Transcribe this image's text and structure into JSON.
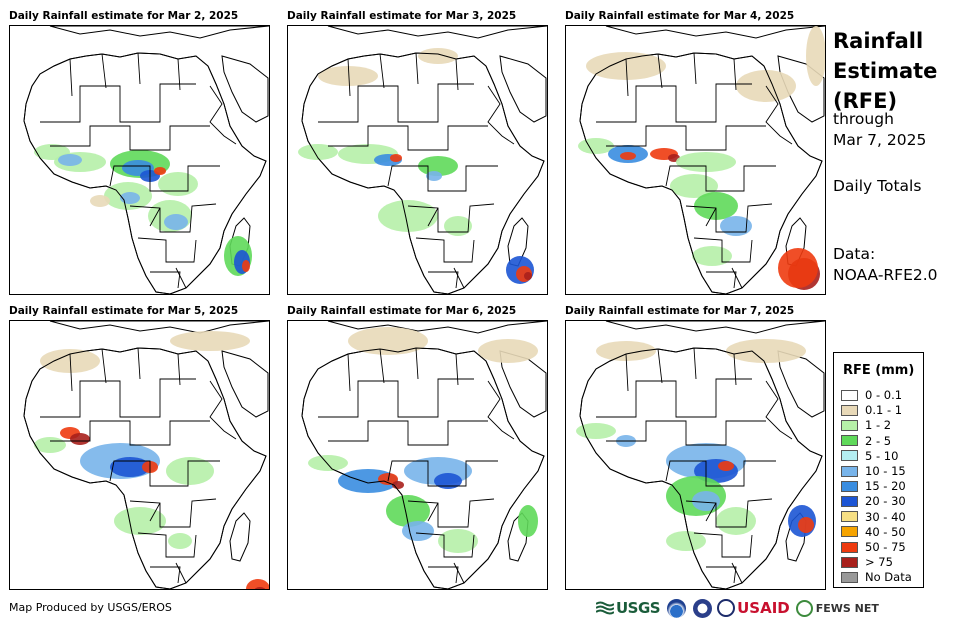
{
  "panels": [
    {
      "title": "Daily Rainfall estimate for Mar 2, 2025",
      "date": "Mar 2, 2025"
    },
    {
      "title": "Daily Rainfall estimate for Mar 3, 2025",
      "date": "Mar 3, 2025"
    },
    {
      "title": "Daily Rainfall estimate for Mar 4, 2025",
      "date": "Mar 4, 2025"
    },
    {
      "title": "Daily Rainfall estimate for Mar 5, 2025",
      "date": "Mar 5, 2025"
    },
    {
      "title": "Daily Rainfall estimate for Mar 6, 2025",
      "date": "Mar 6, 2025"
    },
    {
      "title": "Daily Rainfall estimate for Mar 7, 2025",
      "date": "Mar 7, 2025"
    }
  ],
  "side": {
    "title_line1": "Rainfall",
    "title_line2": "Estimate",
    "title_line3": "(RFE)",
    "through_label": "through",
    "through_date": "Mar 7, 2025",
    "period": "Daily Totals",
    "data_label": "Data:",
    "data_source": "NOAA-RFE2.0"
  },
  "legend": {
    "title": "RFE (mm)",
    "items": [
      {
        "label": "0 - 0.1",
        "color": "#ffffff"
      },
      {
        "label": "0.1 - 1",
        "color": "#e8d9b8"
      },
      {
        "label": "1 - 2",
        "color": "#b6f0a8"
      },
      {
        "label": "2 - 5",
        "color": "#5fd95a"
      },
      {
        "label": "5 - 10",
        "color": "#b4eef2"
      },
      {
        "label": "10 - 15",
        "color": "#78b4ea"
      },
      {
        "label": "15 - 20",
        "color": "#3a8de0"
      },
      {
        "label": "20 - 30",
        "color": "#1c55d4"
      },
      {
        "label": "30 - 40",
        "color": "#f6df84"
      },
      {
        "label": "40 - 50",
        "color": "#f5a300"
      },
      {
        "label": "50 - 75",
        "color": "#ee3b10"
      },
      {
        "label": "> 75",
        "color": "#a8201c"
      },
      {
        "label": "No Data",
        "color": "#999999"
      }
    ]
  },
  "footer": {
    "credit": "Map Produced by USGS/EROS",
    "logos": {
      "usgs": "USGS",
      "usaid": "USAID",
      "fews": "FEWS NET"
    }
  }
}
